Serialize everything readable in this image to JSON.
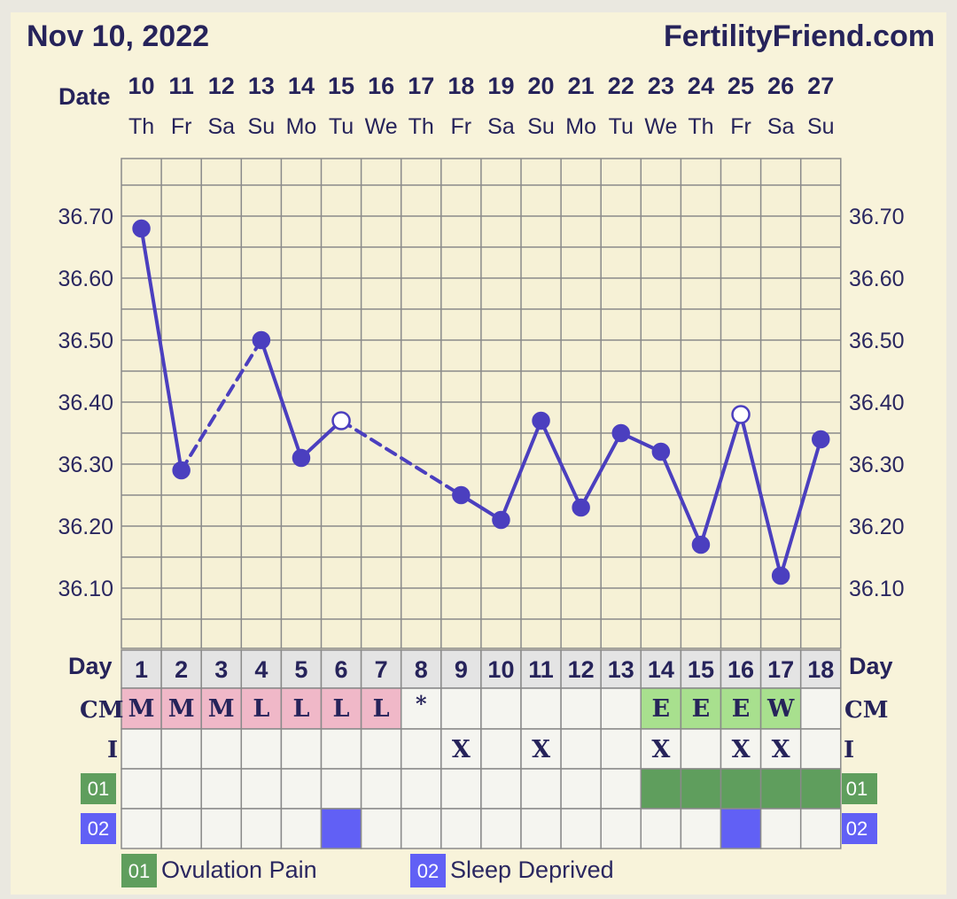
{
  "header": {
    "date": "Nov 10, 2022",
    "site": "FertilityFriend.com"
  },
  "labels": {
    "date": "Date",
    "day": "Day",
    "cm": "CM",
    "intercourse": "I"
  },
  "colors": {
    "line": "#4b3fbf",
    "grid": "#8a8a8a",
    "menses": "#f0b8c8",
    "egg_white": "#a8e08e",
    "custom01": "#5f9e5d",
    "custom02": "#6160f5",
    "day_row": "#e4e4e4",
    "cell": "#f5f5f0"
  },
  "chart_data": {
    "type": "line",
    "title": "",
    "xlabel": "",
    "ylabel": "",
    "ylim": [
      36.0,
      36.8
    ],
    "y_ticks": [
      "36.10",
      "36.20",
      "36.30",
      "36.40",
      "36.50",
      "36.60",
      "36.70"
    ],
    "dates": [
      "10",
      "11",
      "12",
      "13",
      "14",
      "15",
      "16",
      "17",
      "18",
      "19",
      "20",
      "21",
      "22",
      "23",
      "24",
      "25",
      "26",
      "27"
    ],
    "weekdays": [
      "Th",
      "Fr",
      "Sa",
      "Su",
      "Mo",
      "Tu",
      "We",
      "Th",
      "Fr",
      "Sa",
      "Su",
      "Mo",
      "Tu",
      "We",
      "Th",
      "Fr",
      "Sa",
      "Su"
    ],
    "cycle_days": [
      "1",
      "2",
      "3",
      "4",
      "5",
      "6",
      "7",
      "8",
      "9",
      "10",
      "11",
      "12",
      "13",
      "14",
      "15",
      "16",
      "17",
      "18"
    ],
    "temps": [
      36.68,
      36.29,
      null,
      36.5,
      36.31,
      36.37,
      null,
      null,
      36.25,
      36.21,
      36.37,
      36.23,
      36.35,
      36.32,
      36.17,
      36.38,
      36.12,
      36.34
    ],
    "open_markers": [
      5,
      15
    ],
    "dashed_segments": [
      [
        1,
        3
      ],
      [
        5,
        8
      ]
    ],
    "cervical_mucus": [
      "M",
      "M",
      "M",
      "L",
      "L",
      "L",
      "L",
      "*",
      "",
      "",
      "",
      "",
      "",
      "E",
      "E",
      "E",
      "W",
      ""
    ],
    "cm_colors": [
      "menses",
      "menses",
      "menses",
      "menses",
      "menses",
      "menses",
      "menses",
      "",
      "",
      "",
      "",
      "",
      "",
      "egg_white",
      "egg_white",
      "egg_white",
      "egg_white",
      ""
    ],
    "intercourse": [
      "",
      "",
      "",
      "",
      "",
      "",
      "",
      "",
      "X",
      "",
      "X",
      "",
      "",
      "X",
      "",
      "X",
      "X",
      ""
    ],
    "custom01": [
      0,
      0,
      0,
      0,
      0,
      0,
      0,
      0,
      0,
      0,
      0,
      0,
      0,
      1,
      1,
      1,
      1,
      1
    ],
    "custom02": [
      0,
      0,
      0,
      0,
      0,
      1,
      0,
      0,
      0,
      0,
      0,
      0,
      0,
      0,
      0,
      1,
      0,
      0
    ]
  },
  "legend": [
    {
      "code": "01",
      "label": "Ovulation Pain"
    },
    {
      "code": "02",
      "label": "Sleep Deprived"
    }
  ]
}
